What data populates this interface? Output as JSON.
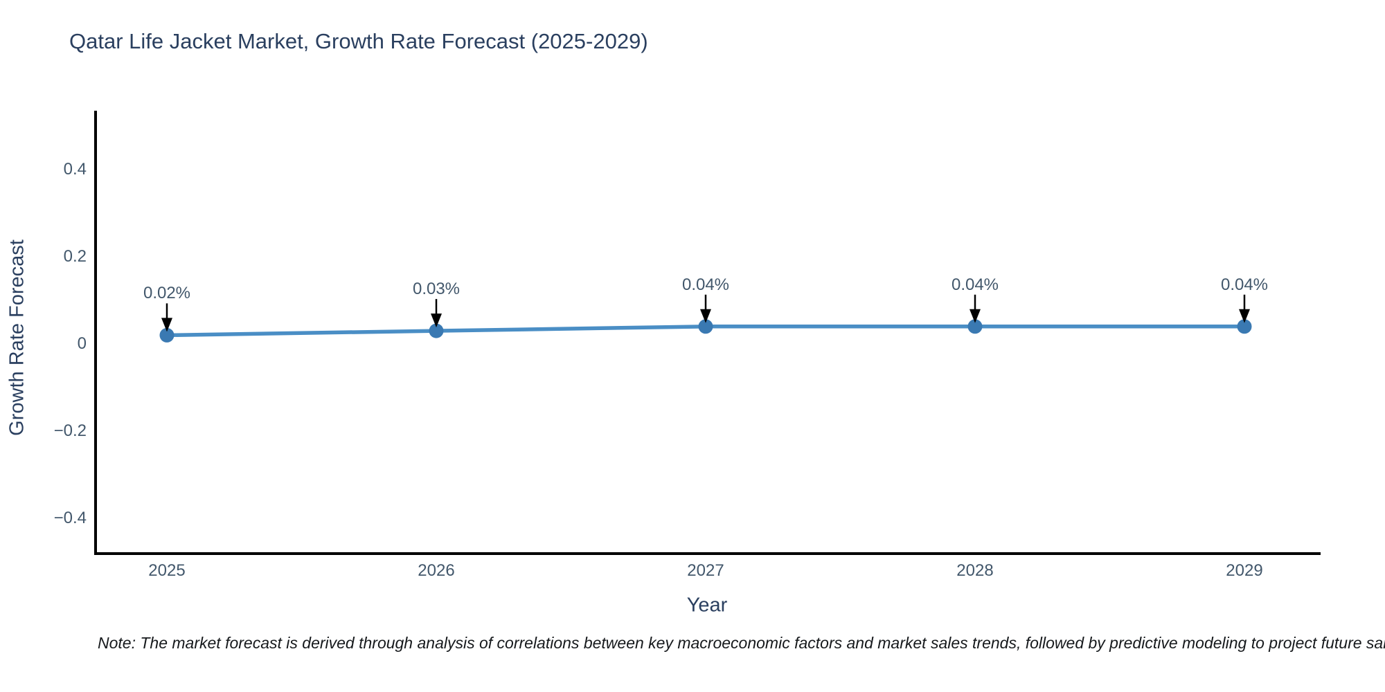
{
  "title": "Qatar Life Jacket Market, Growth Rate Forecast (2025-2029)",
  "note": "Note: The market forecast is derived through analysis of correlations between key macroeconomic factors and market sales trends, followed by predictive modeling to project future sales.",
  "colors": {
    "line": "#4a8ec5",
    "marker": "#3a79b2",
    "axis": "#000000",
    "title_text": "#2a3f5f",
    "tick_text": "#42576b",
    "arrow": "#000000"
  },
  "chart_data": {
    "type": "line",
    "title": "Qatar Life Jacket Market, Growth Rate Forecast (2025-2029)",
    "xlabel": "Year",
    "ylabel": "Growth Rate Forecast",
    "x": [
      2025,
      2026,
      2027,
      2028,
      2029
    ],
    "values": [
      0.02,
      0.03,
      0.04,
      0.04,
      0.04
    ],
    "point_labels": [
      "0.02%",
      "0.03%",
      "0.04%",
      "0.04%",
      "0.04%"
    ],
    "yticks": [
      0.4,
      0.2,
      0,
      -0.2,
      -0.4
    ],
    "ytick_labels": [
      "0.4",
      "0.2",
      "0",
      "−0.2",
      "−0.4"
    ],
    "ylim": [
      -0.48,
      0.54
    ],
    "grid": false,
    "legend_position": "none",
    "annotation_style": "value label with downward arrow to each marker"
  }
}
